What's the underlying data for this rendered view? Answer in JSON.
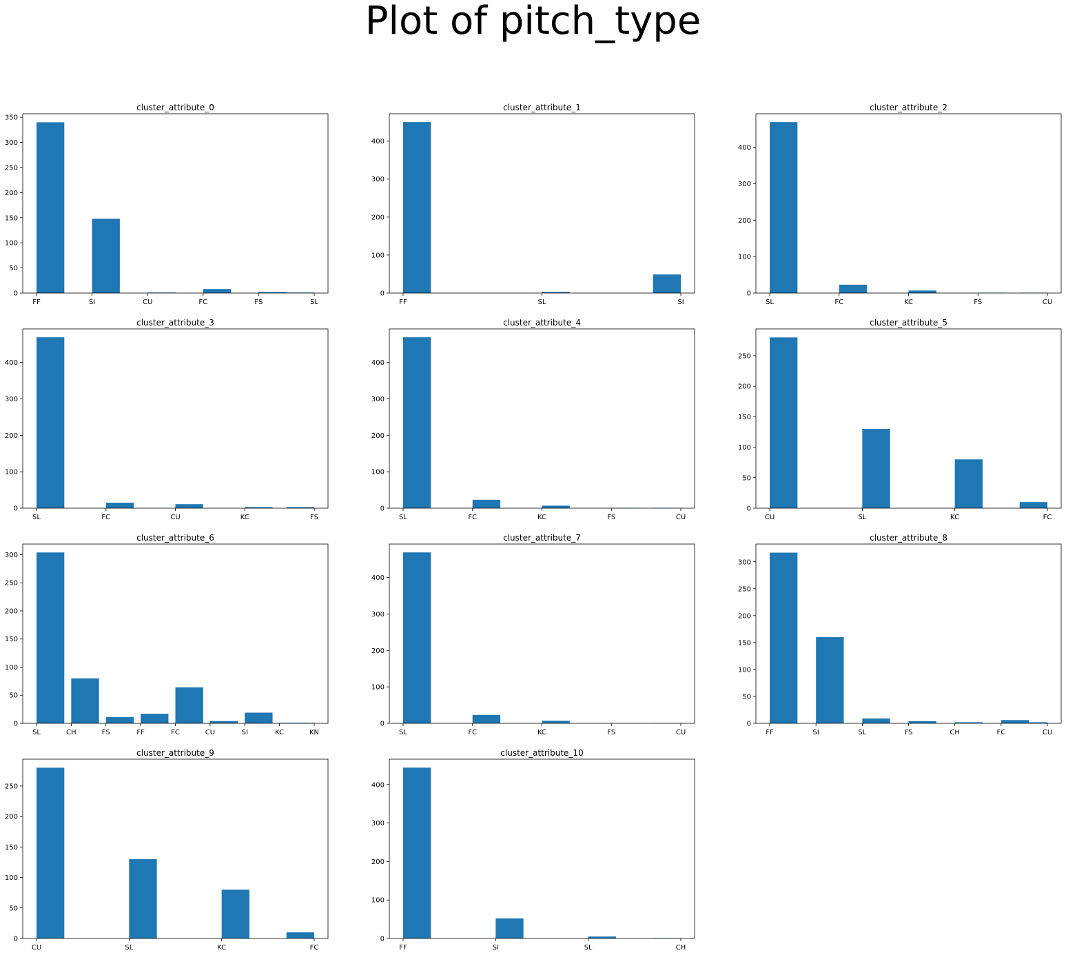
{
  "title": "Plot of pitch_type",
  "bar_color": "#1f77b4",
  "chart_data": [
    {
      "type": "bar",
      "title": "cluster_attribute_0",
      "ylim": [
        0,
        357
      ],
      "yticks": [
        0,
        50,
        100,
        150,
        200,
        250,
        300,
        350
      ],
      "categories": [
        "FF",
        "SI",
        "CU",
        "FC",
        "FS",
        "SL"
      ],
      "values": [
        340,
        148,
        1,
        8,
        2,
        1
      ]
    },
    {
      "type": "bar",
      "title": "cluster_attribute_1",
      "ylim": [
        0,
        472
      ],
      "yticks": [
        0,
        100,
        200,
        300,
        400
      ],
      "categories": [
        "FF",
        "SL",
        "SI"
      ],
      "values": [
        450,
        3,
        49
      ]
    },
    {
      "type": "bar",
      "title": "cluster_attribute_2",
      "ylim": [
        0,
        492
      ],
      "yticks": [
        0,
        100,
        200,
        300,
        400
      ],
      "categories": [
        "SL",
        "FC",
        "KC",
        "FS",
        "CU"
      ],
      "values": [
        469,
        23,
        7,
        1,
        1
      ]
    },
    {
      "type": "bar",
      "title": "cluster_attribute_3",
      "ylim": [
        0,
        492
      ],
      "yticks": [
        0,
        100,
        200,
        300,
        400
      ],
      "categories": [
        "SL",
        "FC",
        "CU",
        "KC",
        "FS"
      ],
      "values": [
        469,
        15,
        11,
        3,
        3
      ]
    },
    {
      "type": "bar",
      "title": "cluster_attribute_4",
      "ylim": [
        0,
        492
      ],
      "yticks": [
        0,
        100,
        200,
        300,
        400
      ],
      "categories": [
        "SL",
        "FC",
        "KC",
        "FS",
        "CU"
      ],
      "values": [
        469,
        23,
        7,
        1,
        1
      ]
    },
    {
      "type": "bar",
      "title": "cluster_attribute_5",
      "ylim": [
        0,
        294
      ],
      "yticks": [
        0,
        50,
        100,
        150,
        200,
        250
      ],
      "categories": [
        "CU",
        "SL",
        "KC",
        "FC"
      ],
      "values": [
        280,
        130,
        80,
        10
      ]
    },
    {
      "type": "bar",
      "title": "cluster_attribute_6",
      "ylim": [
        0,
        319
      ],
      "yticks": [
        0,
        50,
        100,
        150,
        200,
        250,
        300
      ],
      "categories": [
        "SL",
        "CH",
        "FS",
        "FF",
        "FC",
        "CU",
        "SI",
        "KC",
        "KN"
      ],
      "values": [
        304,
        80,
        11,
        17,
        64,
        4,
        19,
        1,
        1
      ]
    },
    {
      "type": "bar",
      "title": "cluster_attribute_7",
      "ylim": [
        0,
        492
      ],
      "yticks": [
        0,
        100,
        200,
        300,
        400
      ],
      "categories": [
        "SL",
        "FC",
        "KC",
        "FS",
        "CU"
      ],
      "values": [
        469,
        23,
        7,
        1,
        1
      ]
    },
    {
      "type": "bar",
      "title": "cluster_attribute_8",
      "ylim": [
        0,
        333
      ],
      "yticks": [
        0,
        50,
        100,
        150,
        200,
        250,
        300
      ],
      "categories": [
        "FF",
        "SI",
        "SL",
        "FS",
        "CH",
        "FC",
        "CU"
      ],
      "values": [
        317,
        160,
        9,
        4,
        2,
        6,
        2
      ]
    },
    {
      "type": "bar",
      "title": "cluster_attribute_9",
      "ylim": [
        0,
        294
      ],
      "yticks": [
        0,
        50,
        100,
        150,
        200,
        250
      ],
      "categories": [
        "CU",
        "SL",
        "KC",
        "FC"
      ],
      "values": [
        280,
        130,
        80,
        10
      ]
    },
    {
      "type": "bar",
      "title": "cluster_attribute_10",
      "ylim": [
        0,
        466
      ],
      "yticks": [
        0,
        100,
        200,
        300,
        400
      ],
      "categories": [
        "FF",
        "SI",
        "SL",
        "CH"
      ],
      "values": [
        444,
        52,
        5,
        1
      ]
    }
  ]
}
